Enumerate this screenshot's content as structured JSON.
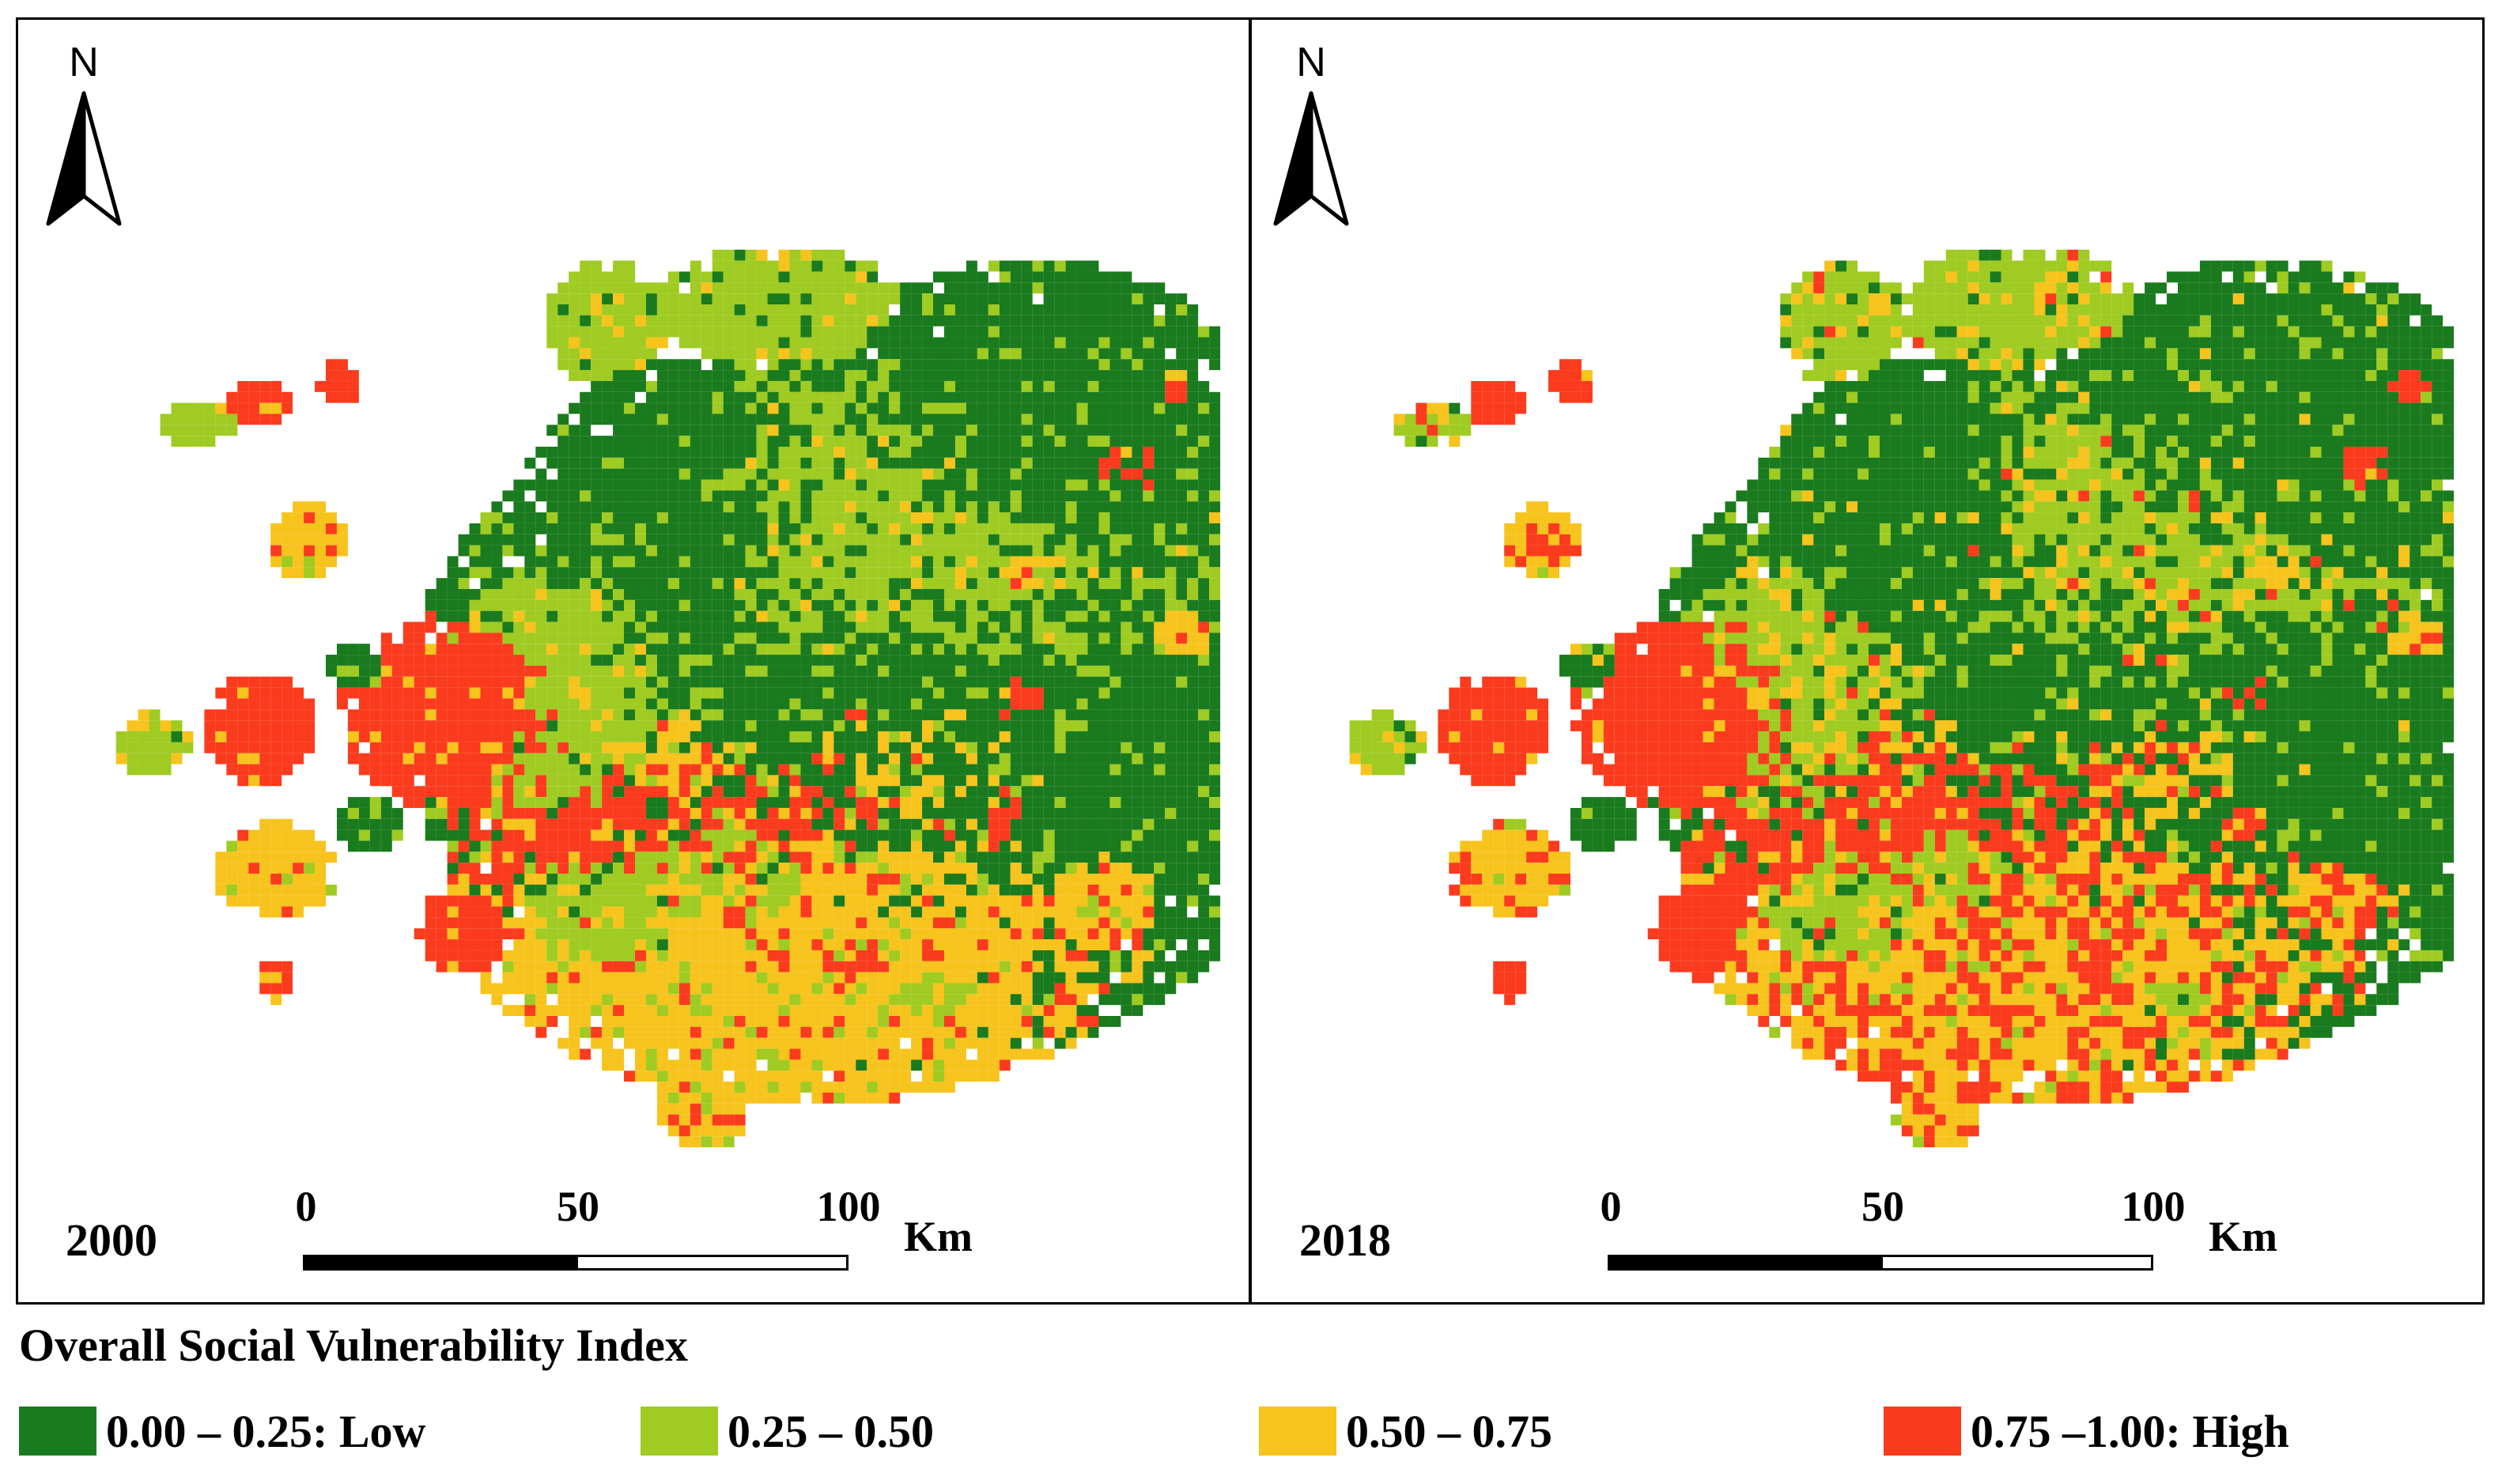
{
  "panels": [
    {
      "year": "2000"
    },
    {
      "year": "2018"
    }
  ],
  "north_arrow": {
    "label": "N",
    "icon": "north-arrow-icon"
  },
  "scale_bar": {
    "ticks": [
      "0",
      "50",
      "100"
    ],
    "unit": "Km"
  },
  "legend": {
    "title": "Overall Social Vulnerability Index",
    "items": [
      {
        "label": "0.00 – 0.25: Low",
        "color": "#1a7a1e"
      },
      {
        "label": "0.25 – 0.50",
        "color": "#9fcb22"
      },
      {
        "label": "0.50 – 0.75",
        "color": "#f7c31d"
      },
      {
        "label": "0.75 –1.00: High",
        "color": "#fb3b1e"
      }
    ]
  }
}
